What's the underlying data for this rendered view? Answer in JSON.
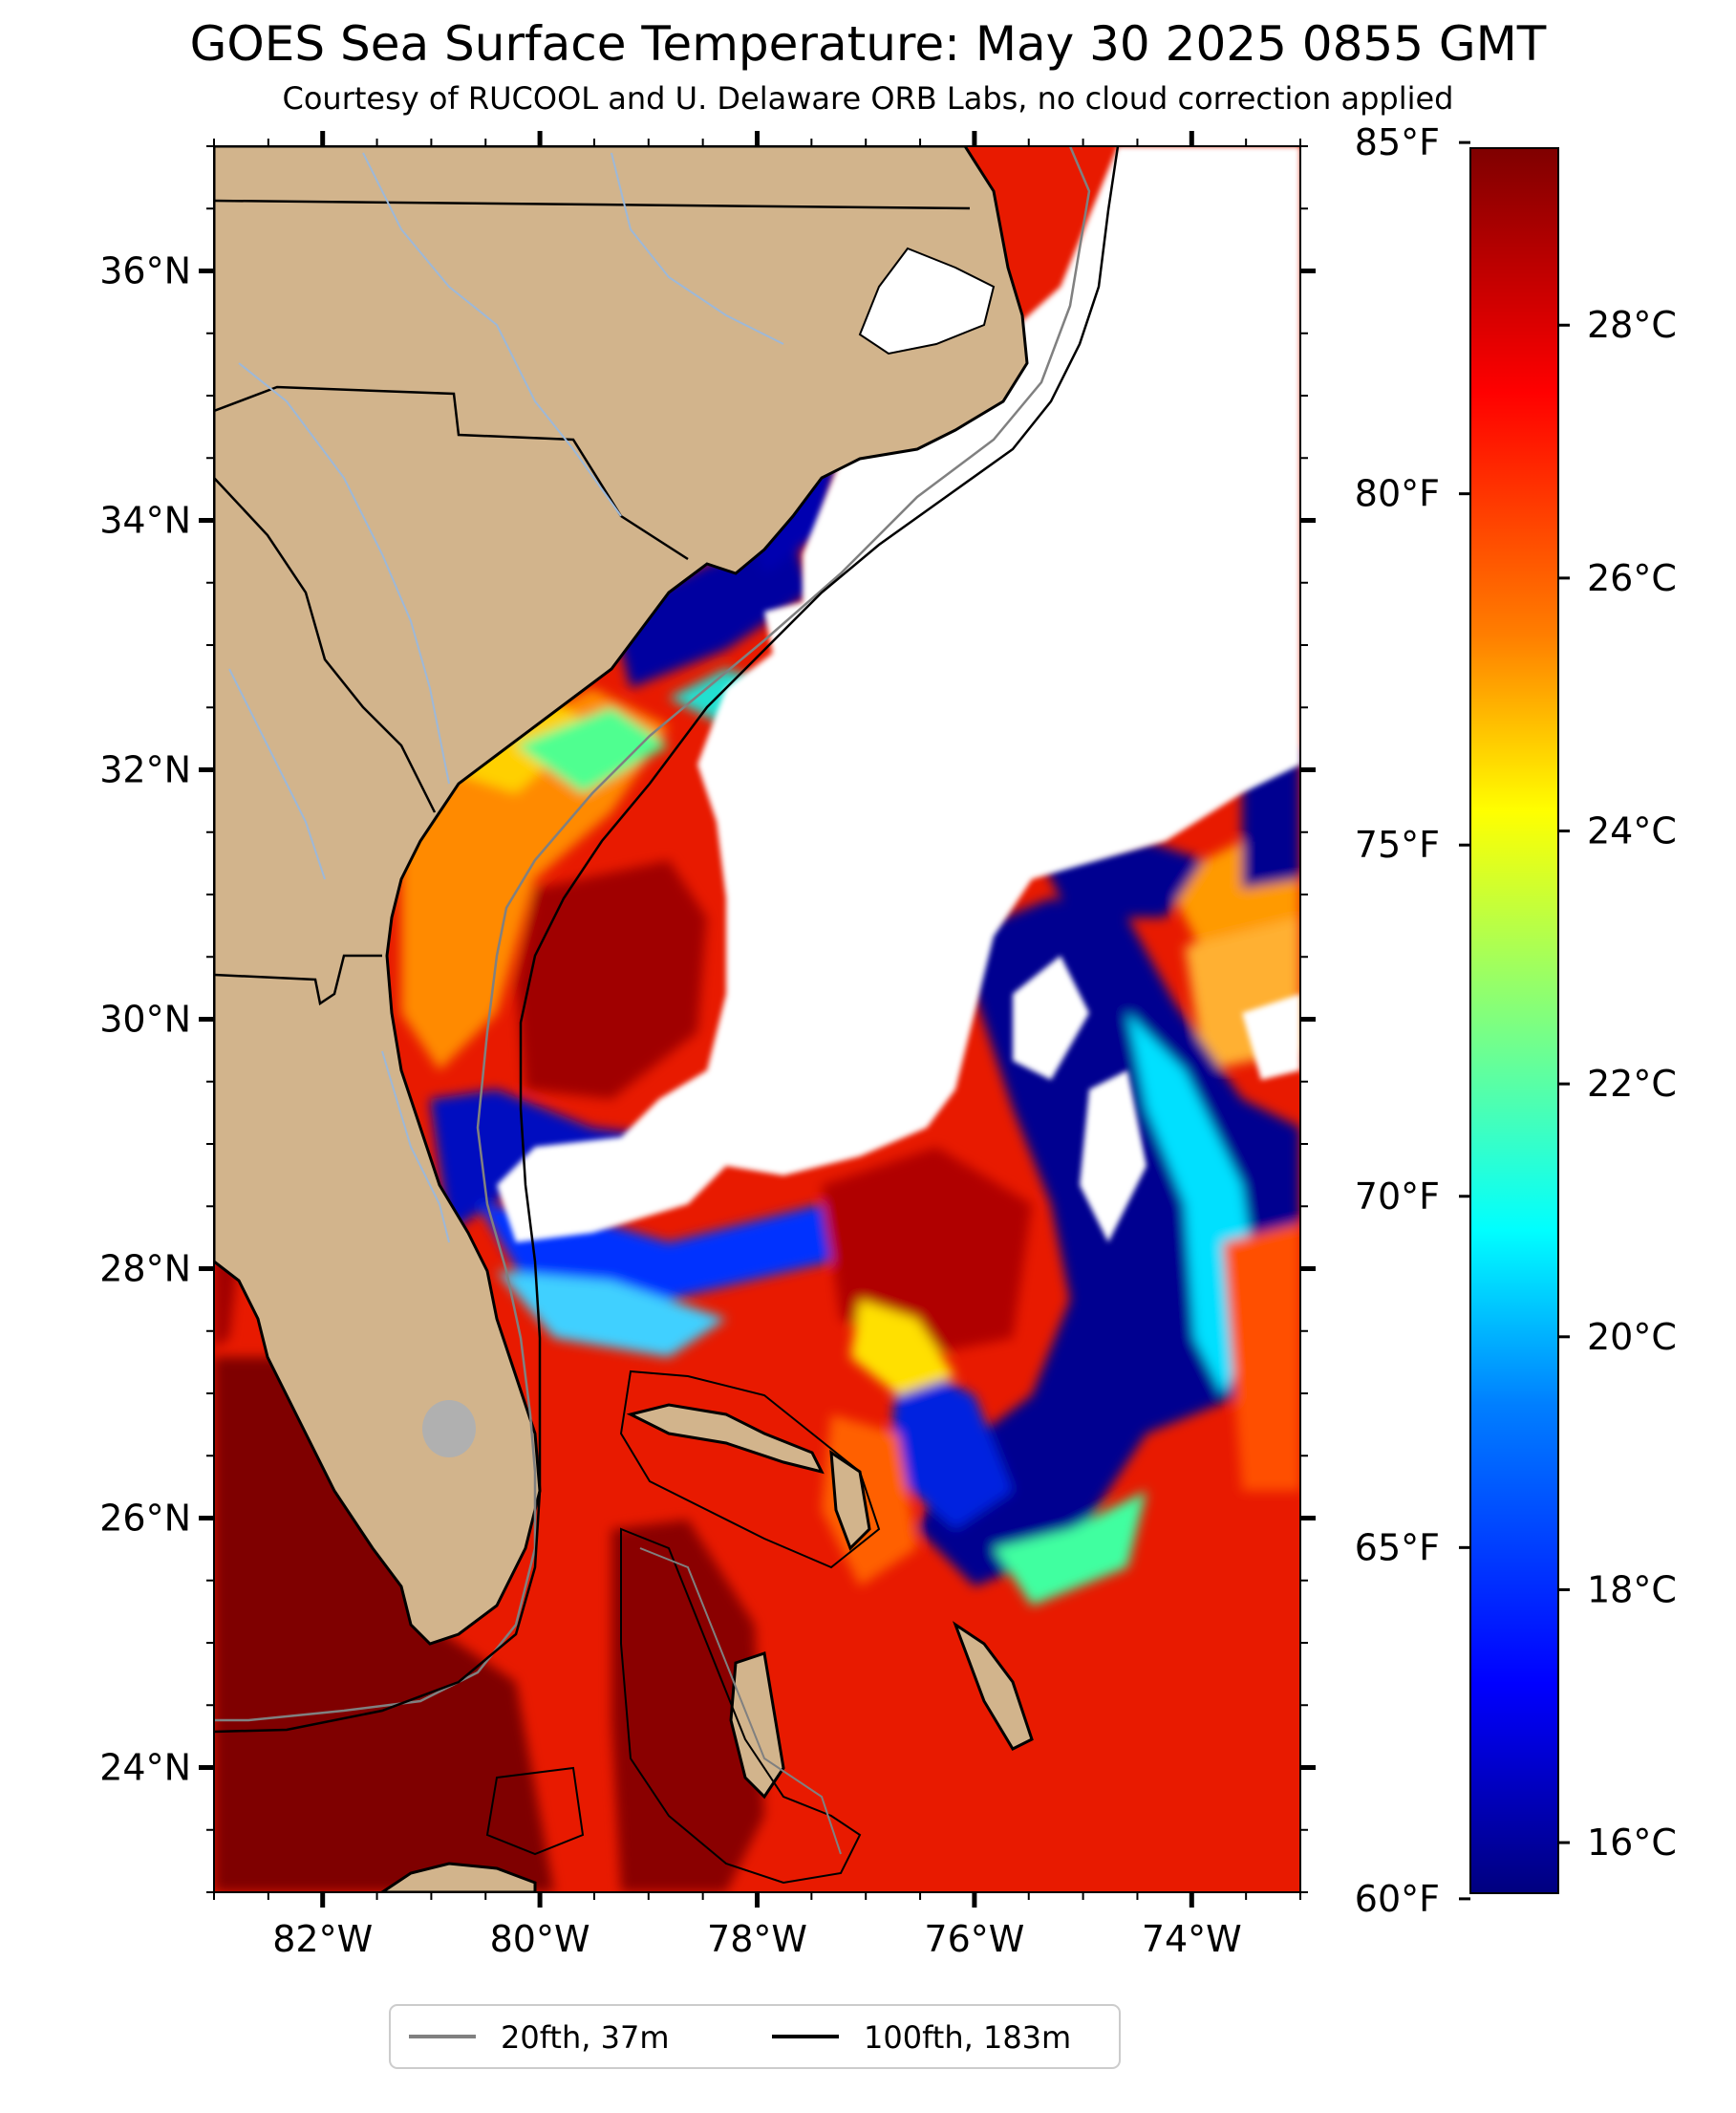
{
  "title": "GOES Sea Surface Temperature: May 30 2025 0855 GMT",
  "subtitle": "Courtesy of RUCOOL and U. Delaware ORB Labs, no cloud correction applied",
  "map": {
    "lon_range": [
      -83.0,
      -73.0
    ],
    "lat_range": [
      23.0,
      37.0
    ],
    "lon_ticks": [
      {
        "value": -82,
        "label": "82°W"
      },
      {
        "value": -80,
        "label": "80°W"
      },
      {
        "value": -78,
        "label": "78°W"
      },
      {
        "value": -76,
        "label": "76°W"
      },
      {
        "value": -74,
        "label": "74°W"
      }
    ],
    "lat_ticks": [
      {
        "value": 24,
        "label": "24°N"
      },
      {
        "value": 26,
        "label": "26°N"
      },
      {
        "value": 28,
        "label": "28°N"
      },
      {
        "value": 30,
        "label": "30°N"
      },
      {
        "value": 32,
        "label": "32°N"
      },
      {
        "value": 34,
        "label": "34°N"
      },
      {
        "value": 36,
        "label": "36°N"
      }
    ],
    "land_color": "#d2b48c",
    "cloud_color": "#ffffff"
  },
  "colorbar": {
    "celsius_range": [
      15.6,
      29.4
    ],
    "celsius_ticks": [
      {
        "value": 16,
        "label": "16°C"
      },
      {
        "value": 18,
        "label": "18°C"
      },
      {
        "value": 20,
        "label": "20°C"
      },
      {
        "value": 22,
        "label": "22°C"
      },
      {
        "value": 24,
        "label": "24°C"
      },
      {
        "value": 26,
        "label": "26°C"
      },
      {
        "value": 28,
        "label": "28°C"
      }
    ],
    "fahrenheit_ticks": [
      {
        "value": 60,
        "label": "60°F"
      },
      {
        "value": 65,
        "label": "65°F"
      },
      {
        "value": 70,
        "label": "70°F"
      },
      {
        "value": 75,
        "label": "75°F"
      },
      {
        "value": 80,
        "label": "80°F"
      },
      {
        "value": 85,
        "label": "85°F"
      }
    ],
    "colormap": [
      "#00007f",
      "#0000ff",
      "#007fff",
      "#00ffff",
      "#7fff7f",
      "#ffff00",
      "#ff7f00",
      "#ff0000",
      "#7f0000"
    ]
  },
  "legend": {
    "items": [
      {
        "label": "20fth, 37m",
        "color": "#808080"
      },
      {
        "label": "100fth, 183m",
        "color": "#000000"
      }
    ]
  }
}
